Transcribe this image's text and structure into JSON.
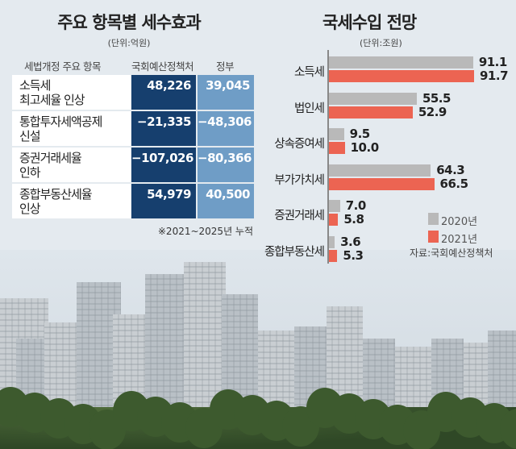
{
  "table": {
    "title": "주요 항목별 세수효과",
    "unit": "(단위:억원)",
    "headers": [
      "세법개정 주요 항목",
      "국회예산정책처",
      "정부"
    ],
    "rows": [
      {
        "item": [
          "소득세",
          "최고세율 인상"
        ],
        "nabo": "48,226",
        "gov": "39,045"
      },
      {
        "item": [
          "통합투자세액공제",
          "신설"
        ],
        "nabo": "−21,335",
        "gov": "−48,306"
      },
      {
        "item": [
          "증권거래세율",
          "인하"
        ],
        "nabo": "−107,026",
        "gov": "−80,366"
      },
      {
        "item": [
          "종합부동산세율",
          "인상"
        ],
        "nabo": "54,979",
        "gov": "40,500"
      }
    ],
    "note": "※2021~2025년 누적",
    "colors": {
      "nabo": "#163f6e",
      "gov": "#6f9dc6"
    }
  },
  "chart_data": {
    "type": "bar",
    "orientation": "horizontal",
    "title": "국세수입 전망",
    "unit": "(단위:조원)",
    "categories": [
      "소득세",
      "법인세",
      "상속증여세",
      "부가가치세",
      "증권거래세",
      "종합부동산세"
    ],
    "series": [
      {
        "name": "2020년",
        "color": "#b9b9b9",
        "values": [
          91.1,
          55.5,
          9.5,
          64.3,
          7.0,
          3.6
        ],
        "labels": [
          "91.1",
          "55.5",
          "9.5",
          "64.3",
          "7.0",
          "3.6"
        ]
      },
      {
        "name": "2021년",
        "color": "#ec6452",
        "values": [
          91.7,
          52.9,
          10.0,
          66.5,
          5.8,
          5.3
        ],
        "labels": [
          "91.7",
          "52.9",
          "10.0",
          "66.5",
          "5.8",
          "5.3"
        ]
      }
    ],
    "xlim": [
      0,
      100
    ],
    "grid": false,
    "legend": "bottom-right",
    "source": "자료:국회예산정책처"
  }
}
